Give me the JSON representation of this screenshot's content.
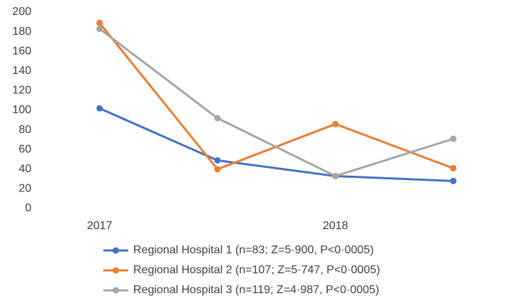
{
  "chart_data": {
    "type": "line",
    "categories": [
      "2017",
      null,
      "2018",
      null
    ],
    "series": [
      {
        "name": "Regional Hospital 1 (n=83; Z=5·900, P<0·0005)",
        "color": "#4472c4",
        "values": [
          102,
          49,
          33,
          28
        ]
      },
      {
        "name": "Regional Hospital 2 (n=107; Z=5·747, P<0·0005)",
        "color": "#ed7d31",
        "values": [
          189,
          40,
          86,
          41
        ]
      },
      {
        "name": "Regional Hospital 3 (n=119; Z=4·987, P<0·0005)",
        "color": "#a5a5a5",
        "values": [
          183,
          92,
          33,
          71
        ]
      }
    ],
    "ylim": [
      0,
      200
    ],
    "yticks": [
      0,
      20,
      40,
      60,
      80,
      100,
      120,
      140,
      160,
      180,
      200
    ],
    "grid": false,
    "legend": "bottom"
  }
}
